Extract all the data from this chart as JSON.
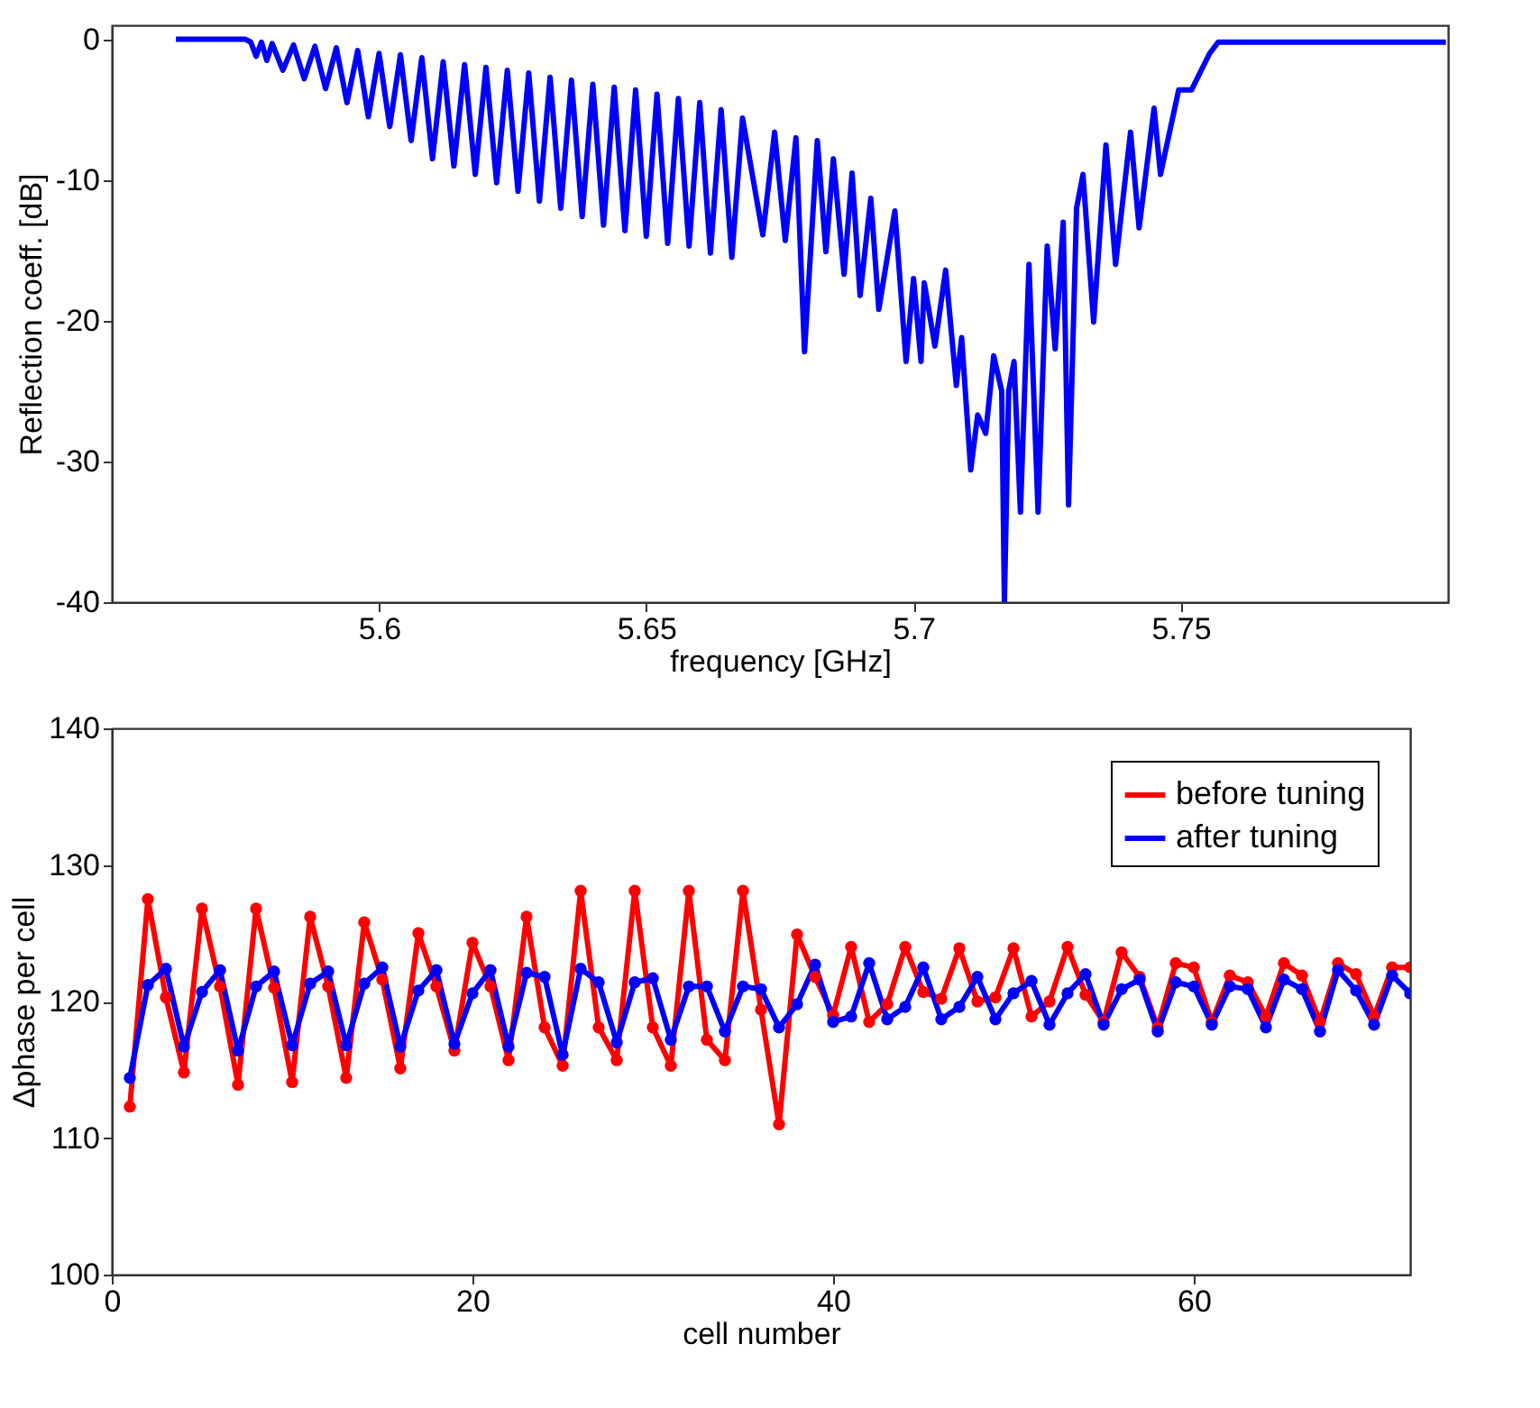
{
  "chart_data": [
    {
      "type": "line",
      "xlabel": "frequency [GHz]",
      "ylabel": "Reflection coeff. [dB]",
      "xlim": [
        5.55,
        5.8
      ],
      "ylim": [
        -40,
        1
      ],
      "xticks": [
        5.6,
        5.65,
        5.7,
        5.75
      ],
      "yticks": [
        -40,
        -30,
        -20,
        -10,
        0
      ],
      "marker": "none",
      "line_style": "solid",
      "series": [
        {
          "color": "#0000ff",
          "x": [
            5.562,
            5.575,
            5.576,
            5.577,
            5.578,
            5.579,
            5.58,
            5.582,
            5.584,
            5.586,
            5.588,
            5.59,
            5.592,
            5.594,
            5.596,
            5.598,
            5.6,
            5.602,
            5.604,
            5.606,
            5.608,
            5.61,
            5.612,
            5.614,
            5.616,
            5.618,
            5.62,
            5.622,
            5.624,
            5.626,
            5.628,
            5.63,
            5.632,
            5.634,
            5.636,
            5.638,
            5.64,
            5.642,
            5.644,
            5.646,
            5.648,
            5.65,
            5.652,
            5.654,
            5.656,
            5.658,
            5.66,
            5.662,
            5.664,
            5.666,
            5.668,
            5.6718,
            5.674,
            5.676,
            5.678,
            5.6796,
            5.682,
            5.6836,
            5.685,
            5.687,
            5.6885,
            5.69,
            5.692,
            5.6935,
            5.6965,
            5.6986,
            5.7,
            5.7014,
            5.702,
            5.704,
            5.706,
            5.708,
            5.709,
            5.7107,
            5.712,
            5.7135,
            5.715,
            5.7165,
            5.717,
            5.7178,
            5.7188,
            5.72,
            5.7216,
            5.7233,
            5.725,
            5.7265,
            5.728,
            5.729,
            5.7305,
            5.7317,
            5.7337,
            5.736,
            5.7378,
            5.7406,
            5.7422,
            5.745,
            5.7462,
            5.7496,
            5.752,
            5.7554,
            5.757,
            5.7996
          ],
          "values": [
            0,
            0,
            -0.2,
            -1.2,
            -0.2,
            -1.5,
            -0.3,
            -2.2,
            -0.4,
            -2.8,
            -0.5,
            -3.5,
            -0.6,
            -4.5,
            -0.8,
            -5.5,
            -1.0,
            -6.2,
            -1.1,
            -7.2,
            -1.3,
            -8.5,
            -1.6,
            -9.0,
            -1.8,
            -9.6,
            -2.0,
            -10.2,
            -2.2,
            -10.8,
            -2.4,
            -11.5,
            -2.7,
            -12.0,
            -2.9,
            -12.6,
            -3.2,
            -13.2,
            -3.4,
            -13.6,
            -3.6,
            -14.0,
            -3.9,
            -14.5,
            -4.2,
            -14.7,
            -4.5,
            -15.2,
            -5.0,
            -15.5,
            -5.6,
            -13.9,
            -6.6,
            -14.3,
            -7.0,
            -22.2,
            -7.2,
            -15.1,
            -8.5,
            -16.7,
            -9.5,
            -18.2,
            -11.3,
            -19.2,
            -12.2,
            -22.9,
            -17.0,
            -22.9,
            -17.3,
            -21.8,
            -16.4,
            -24.6,
            -21.2,
            -30.6,
            -26.7,
            -28.0,
            -22.5,
            -25.0,
            -40.0,
            -25.0,
            -22.9,
            -33.6,
            -16.0,
            -33.6,
            -14.7,
            -22.0,
            -13.0,
            -33.1,
            -12.0,
            -9.6,
            -20.1,
            -7.5,
            -16.0,
            -6.6,
            -13.4,
            -4.9,
            -9.6,
            -3.6,
            -3.6,
            -1.0,
            -0.2,
            -0.2
          ]
        }
      ]
    },
    {
      "type": "line",
      "xlabel": "cell number",
      "ylabel": "Δphase per cell",
      "xlim": [
        0,
        72
      ],
      "ylim": [
        100,
        140
      ],
      "xticks": [
        0,
        20,
        40,
        60
      ],
      "yticks": [
        100,
        110,
        120,
        130,
        140
      ],
      "marker": "circle",
      "line_style": "solid",
      "legend": "top right",
      "x": [
        1,
        2,
        3,
        4,
        5,
        6,
        7,
        8,
        9,
        10,
        11,
        12,
        13,
        14,
        15,
        16,
        17,
        18,
        19,
        20,
        21,
        22,
        23,
        24,
        25,
        26,
        27,
        28,
        29,
        30,
        31,
        32,
        33,
        34,
        35,
        36,
        37,
        38,
        39,
        40,
        41,
        42,
        43,
        44,
        45,
        46,
        47,
        48,
        49,
        50,
        51,
        52,
        53,
        54,
        55,
        56,
        57,
        58,
        59,
        60,
        61,
        62,
        63,
        64,
        65,
        66,
        67,
        68,
        69,
        70,
        71,
        72
      ],
      "series": [
        {
          "name": "before tuning",
          "color": "#ff0000",
          "values": [
            112.3,
            127.5,
            120.3,
            114.8,
            126.8,
            121.1,
            113.9,
            126.8,
            121.0,
            114.1,
            126.2,
            121.1,
            114.4,
            125.8,
            121.6,
            115.1,
            125.0,
            121.1,
            116.4,
            124.3,
            121.1,
            115.7,
            126.2,
            118.1,
            115.3,
            128.1,
            118.1,
            115.7,
            128.1,
            118.1,
            115.3,
            128.1,
            117.2,
            115.7,
            128.1,
            119.4,
            111.0,
            124.9,
            121.8,
            119.0,
            124.0,
            118.5,
            119.8,
            124.0,
            120.7,
            120.2,
            123.9,
            120.0,
            120.3,
            123.9,
            118.9,
            120.0,
            124.0,
            120.5,
            118.5,
            123.6,
            121.8,
            118.1,
            122.8,
            122.5,
            118.5,
            121.9,
            121.4,
            118.9,
            122.8,
            121.9,
            118.5,
            122.8,
            122.0,
            118.9,
            122.5,
            122.5
          ]
        },
        {
          "name": "after tuning",
          "color": "#0000ff",
          "values": [
            114.4,
            121.2,
            122.4,
            116.7,
            120.7,
            122.3,
            116.4,
            121.1,
            122.2,
            116.8,
            121.3,
            122.2,
            116.8,
            121.3,
            122.5,
            116.7,
            120.8,
            122.3,
            116.9,
            120.6,
            122.3,
            116.7,
            122.1,
            121.8,
            116.1,
            122.4,
            121.4,
            117.0,
            121.4,
            121.7,
            117.2,
            121.1,
            121.1,
            117.8,
            121.1,
            120.9,
            118.1,
            119.8,
            122.7,
            118.5,
            118.9,
            122.8,
            118.7,
            119.6,
            122.5,
            118.7,
            119.6,
            121.8,
            118.7,
            120.6,
            121.5,
            118.3,
            120.6,
            122.0,
            118.3,
            120.9,
            121.6,
            117.8,
            121.4,
            121.1,
            118.3,
            121.1,
            120.9,
            118.1,
            121.6,
            120.9,
            117.8,
            122.3,
            120.8,
            118.3,
            121.9,
            120.6
          ]
        }
      ]
    }
  ]
}
